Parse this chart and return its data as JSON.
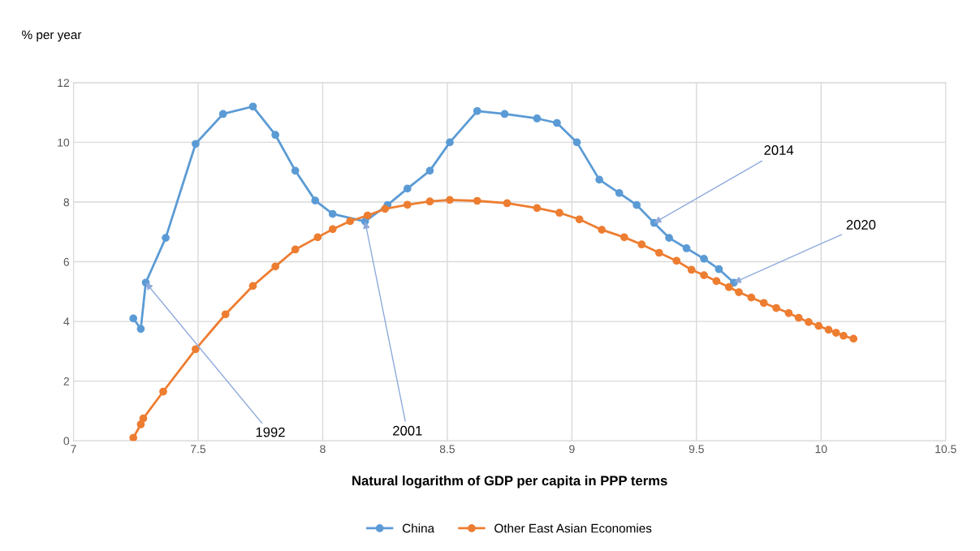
{
  "chart_data": {
    "type": "line",
    "xlabel": "Natural logarithm of GDP per capita in PPP terms",
    "ylabel": "% per year",
    "xlim": [
      7,
      10.5
    ],
    "xticks": [
      7,
      7.5,
      8,
      8.5,
      9,
      9.5,
      10,
      10.5
    ],
    "ylim": [
      0,
      12
    ],
    "yticks": [
      0,
      2,
      4,
      6,
      8,
      10,
      12
    ],
    "grid": true,
    "legend": "bottom",
    "marker": "circle",
    "line_style": "solid",
    "series": [
      {
        "name": "China",
        "color": "#5b9bd5",
        "x": [
          7.24,
          7.27,
          7.29,
          7.37,
          7.49,
          7.6,
          7.72,
          7.81,
          7.89,
          7.97,
          8.04,
          8.17,
          8.26,
          8.34,
          8.43,
          8.51,
          8.62,
          8.73,
          8.86,
          8.94,
          9.02,
          9.11,
          9.19,
          9.26,
          9.33,
          9.39,
          9.46,
          9.53,
          9.59,
          9.65
        ],
        "values": [
          4.1,
          3.75,
          5.3,
          6.8,
          9.95,
          10.95,
          11.2,
          10.25,
          9.05,
          8.05,
          7.6,
          7.35,
          7.9,
          8.45,
          9.05,
          10.0,
          11.05,
          10.95,
          10.8,
          10.65,
          10.0,
          8.75,
          8.3,
          7.9,
          7.3,
          6.8,
          6.45,
          6.1,
          5.75,
          5.3
        ]
      },
      {
        "name": "Other East Asian Economies",
        "color": "#ed7d31",
        "x": [
          7.24,
          7.27,
          7.28,
          7.36,
          7.49,
          7.61,
          7.72,
          7.81,
          7.89,
          7.98,
          8.04,
          8.11,
          8.18,
          8.25,
          8.34,
          8.43,
          8.51,
          8.62,
          8.74,
          8.86,
          8.95,
          9.03,
          9.12,
          9.21,
          9.28,
          9.35,
          9.42,
          9.48,
          9.53,
          9.58,
          9.63,
          9.67,
          9.72,
          9.77,
          9.82,
          9.87,
          9.91,
          9.95,
          9.99,
          10.03,
          10.06,
          10.09,
          10.13
        ],
        "values": [
          0.1,
          0.55,
          0.75,
          1.65,
          3.07,
          4.24,
          5.19,
          5.84,
          6.41,
          6.82,
          7.09,
          7.36,
          7.55,
          7.77,
          7.91,
          8.02,
          8.07,
          8.04,
          7.96,
          7.8,
          7.64,
          7.42,
          7.07,
          6.82,
          6.58,
          6.3,
          6.03,
          5.73,
          5.55,
          5.35,
          5.15,
          4.98,
          4.8,
          4.62,
          4.45,
          4.28,
          4.12,
          3.98,
          3.85,
          3.72,
          3.62,
          3.52,
          3.42
        ]
      }
    ],
    "annotations": [
      {
        "text": "1992",
        "x": 7.29,
        "y": 5.3
      },
      {
        "text": "2001",
        "x": 8.17,
        "y": 7.35
      },
      {
        "text": "2014",
        "x": 9.33,
        "y": 7.3
      },
      {
        "text": "2020",
        "x": 9.65,
        "y": 5.3
      }
    ]
  }
}
